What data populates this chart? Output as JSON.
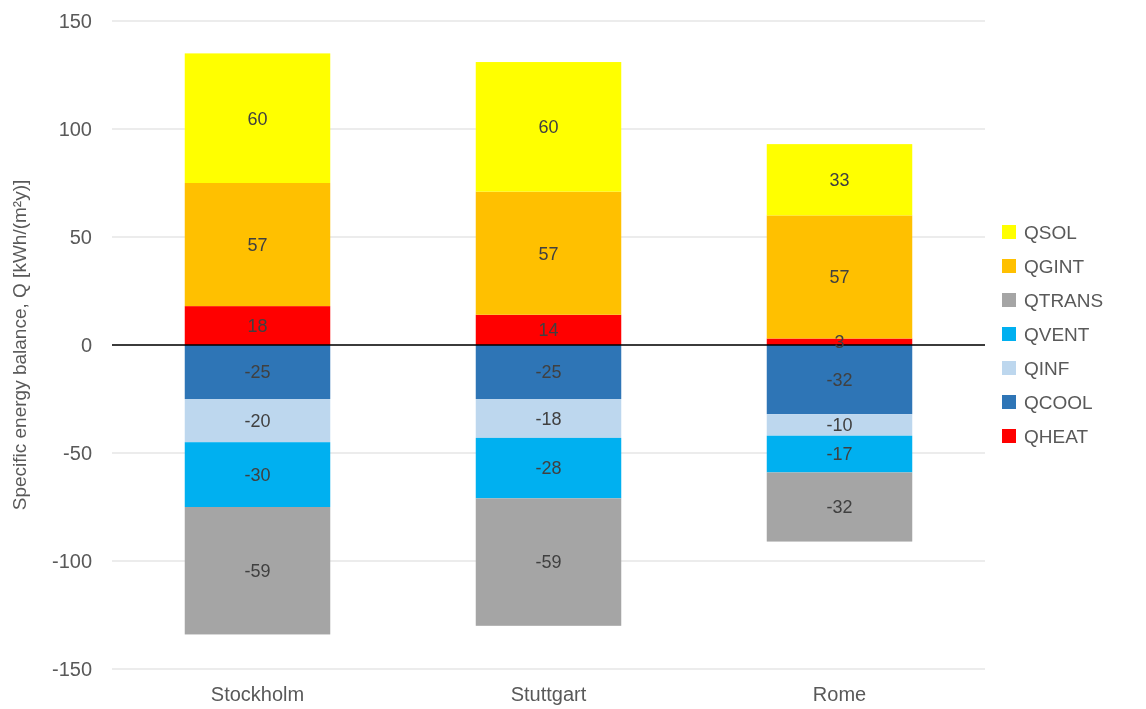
{
  "chart_data": {
    "type": "bar",
    "stacked": true,
    "ylabel": "Specific energy balance, Q [kWh/(m²y)]",
    "categories": [
      "Stockholm",
      "Stuttgart",
      "Rome"
    ],
    "series": [
      {
        "name": "QHEAT",
        "color": "#ff0000",
        "values": [
          18,
          14,
          3
        ]
      },
      {
        "name": "QCOOL",
        "color": "#2e75b6",
        "values": [
          -25,
          -25,
          -32
        ]
      },
      {
        "name": "QINF",
        "color": "#bdd7ee",
        "values": [
          -20,
          -18,
          -10
        ]
      },
      {
        "name": "QVENT",
        "color": "#00b0f0",
        "values": [
          -30,
          -28,
          -17
        ]
      },
      {
        "name": "QTRANS",
        "color": "#a5a5a5",
        "values": [
          -59,
          -59,
          -32
        ]
      },
      {
        "name": "QGINT",
        "color": "#ffc000",
        "values": [
          57,
          57,
          57
        ]
      },
      {
        "name": "QSOL",
        "color": "#ffff00",
        "values": [
          60,
          60,
          33
        ]
      }
    ],
    "ylim": [
      -150,
      150
    ],
    "yticks": [
      -150,
      -100,
      -50,
      0,
      50,
      100,
      150
    ],
    "grid": "y",
    "legend": "right",
    "data_labels": true
  }
}
